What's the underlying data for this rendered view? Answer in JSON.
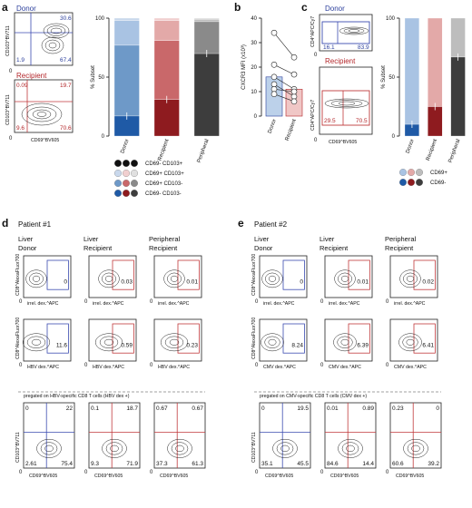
{
  "colors": {
    "donor": "#2b3f9c",
    "recipient": "#b3262a",
    "peripheral": "#555555",
    "donor_light": [
      "#c9d8ec",
      "#a9c3e3",
      "#6e99c8",
      "#1f5aa6"
    ],
    "recipient_light": [
      "#f1cfcf",
      "#e3a9a8",
      "#c9686a",
      "#8e1b1f"
    ],
    "grey_shades": [
      "#e0e0e0",
      "#bdbdbd",
      "#8a8a8a",
      "#3d3d3d"
    ]
  },
  "panel_a": {
    "label": "a",
    "donor_title": "Donor",
    "recipient_title": "Recipient",
    "y_axis": "CD103^BV711",
    "x_axis": "CD69^BV605",
    "zero_label": "0",
    "donor_quadrants": {
      "tr": "30.6",
      "br": "67.4",
      "bl": "1.9"
    },
    "recipient_quadrants": {
      "tl": "0.09",
      "tr": "19.7",
      "bl": "9.6",
      "br": "70.6"
    },
    "legend": [
      "CD69- CD103+",
      "CD69+ CD103+",
      "CD69+ CD103-",
      "CD69- CD103-"
    ]
  },
  "chart_data": [
    {
      "type": "bar",
      "panel": "a",
      "ylabel": "% Subset",
      "ylim": [
        0,
        100
      ],
      "yticks": [
        "0",
        "50",
        "100"
      ],
      "categories": [
        "Donor",
        "Recipient",
        "Peripheral"
      ],
      "series": [
        {
          "name": "CD69- CD103-",
          "values": [
            17,
            31,
            70
          ]
        },
        {
          "name": "CD69+ CD103-",
          "values": [
            60,
            50,
            27
          ]
        },
        {
          "name": "CD69+ CD103+",
          "values": [
            21,
            17,
            2
          ]
        },
        {
          "name": "CD69- CD103+",
          "values": [
            2,
            2,
            1
          ]
        }
      ]
    },
    {
      "type": "bar",
      "panel": "b",
      "ylabel": "CXCR3 MFI (x10³)",
      "ylim": [
        0,
        40
      ],
      "yticks": [
        "0",
        "10",
        "20",
        "30",
        "40"
      ],
      "categories": [
        "Donor",
        "Recipient"
      ],
      "values": [
        16,
        11
      ],
      "pairs": [
        [
          34,
          24
        ],
        [
          21,
          17
        ],
        [
          16,
          11
        ],
        [
          13,
          8
        ],
        [
          11,
          10
        ],
        [
          9,
          6
        ]
      ]
    },
    {
      "type": "bar",
      "panel": "c",
      "ylabel": "% Subset",
      "ylim": [
        0,
        100
      ],
      "yticks": [
        "0",
        "50",
        "100"
      ],
      "categories": [
        "Donor",
        "Recipient",
        "Peripheral"
      ],
      "series": [
        {
          "name": "CD69-",
          "values": [
            10,
            25,
            67
          ]
        },
        {
          "name": "CD69+",
          "values": [
            90,
            75,
            33
          ]
        }
      ]
    }
  ],
  "panel_b": {
    "label": "b"
  },
  "panel_c": {
    "label": "c",
    "donor_title": "Donor",
    "recipient_title": "Recipient",
    "y_axis": "CD4^APC/Cy7",
    "x_axis": "CD69^BV605",
    "zero_label": "0",
    "donor_vals": {
      "left": "16.1",
      "right": "83.9"
    },
    "recipient_vals": {
      "left": "29.5",
      "right": "70.5"
    },
    "legend": [
      "CD69+",
      "CD69-"
    ]
  },
  "panel_d": {
    "label": "d",
    "patient": "Patient #1",
    "columns": [
      {
        "tissue": "Liver",
        "source": "Donor"
      },
      {
        "tissue": "Liver",
        "source": "Recipient"
      },
      {
        "tissue": "Peripheral",
        "source": "Recipient"
      }
    ],
    "row1_y": "CD8^AlexaFluor700",
    "row1_x": "irrel. dex.^APC",
    "row1_vals": [
      "0",
      "0.03",
      "0.01"
    ],
    "row2_y": "CD8^AlexaFluor700",
    "row2_x": "HBV dex.^APC",
    "row2_vals": [
      "11.6",
      "0.59",
      "0.23"
    ],
    "pregate_note": "pregated on HBV-specific CD8 T cells (HBV dex +)",
    "row3_y": "CD103^BV711",
    "row3_x": "CD69^BV605",
    "row3_quads": [
      {
        "tl": "0",
        "tr": "22",
        "bl": "2.61",
        "br": "75.4"
      },
      {
        "tl": "0.1",
        "tr": "18.7",
        "bl": "9.3",
        "br": "71.9"
      },
      {
        "tl": "0.67",
        "tr": "0.67",
        "bl": "37.3",
        "br": "61.3"
      }
    ]
  },
  "panel_e": {
    "label": "e",
    "patient": "Patient #2",
    "columns": [
      {
        "tissue": "Liver",
        "source": "Donor"
      },
      {
        "tissue": "Liver",
        "source": "Recipient"
      },
      {
        "tissue": "Peripheral",
        "source": "Recipient"
      }
    ],
    "row1_y": "CD8^AlexaFluor700",
    "row1_x": "irrel. dex.^APC",
    "row1_vals": [
      "0",
      "0.01",
      "0.02"
    ],
    "row2_y": "CD8^AlexaFluor700",
    "row2_x": "CMV dex.^APC",
    "row2_vals": [
      "8.24",
      "6.39",
      "6.41"
    ],
    "pregate_note": "pregated on CMV-specific CD8 T cells (CMV dex +)",
    "row3_y": "CD103^BV711",
    "row3_x": "CD69^BV605",
    "row3_quads": [
      {
        "tl": "0",
        "tr": "19.5",
        "bl": "35.1",
        "br": "45.5"
      },
      {
        "tl": "0.01",
        "tr": "0.89",
        "bl": "84.6",
        "br": "14.4"
      },
      {
        "tl": "0.23",
        "tr": "0",
        "bl": "60.6",
        "br": "39.2"
      }
    ]
  }
}
